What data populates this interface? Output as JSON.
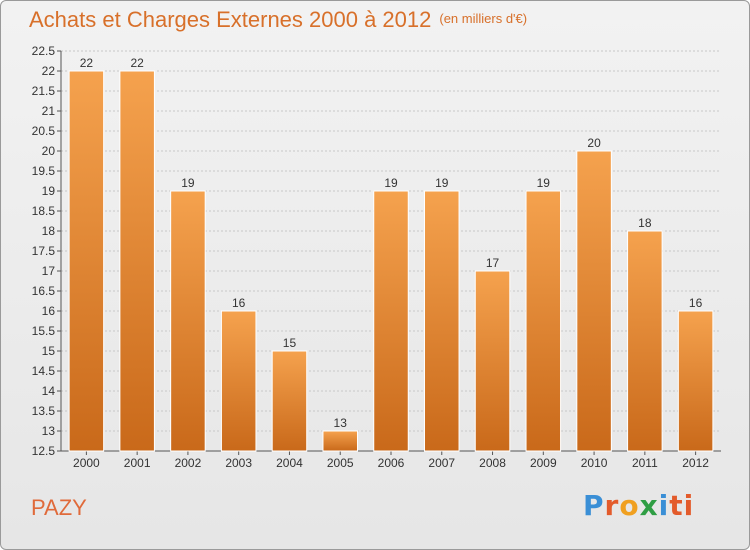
{
  "header": {
    "title": "Achats et Charges Externes 2000 à 2012",
    "subtitle": "(en milliers d'€)"
  },
  "commune": "PAZY",
  "logo": {
    "text": "Proxiti",
    "letters": [
      "P",
      "r",
      "o",
      "x",
      "i",
      "ti"
    ]
  },
  "colors": {
    "bar_top": "#f5a24e",
    "bar_bottom": "#c9691a",
    "title": "#d8702a",
    "grid": "#c8c8c8"
  },
  "chart_data": {
    "type": "bar",
    "title": "Achats et Charges Externes 2000 à 2012",
    "subtitle": "(en milliers d'€)",
    "xlabel": "",
    "ylabel": "",
    "categories": [
      "2000",
      "2001",
      "2002",
      "2003",
      "2004",
      "2005",
      "2006",
      "2007",
      "2008",
      "2009",
      "2010",
      "2011",
      "2012"
    ],
    "values": [
      22,
      22,
      19,
      16,
      15,
      13,
      19,
      19,
      17,
      19,
      20,
      18,
      16
    ],
    "ylim": [
      12.5,
      22.5
    ],
    "yticks": [
      "12.5",
      "13",
      "13.5",
      "14",
      "14.5",
      "15",
      "15.5",
      "16",
      "16.5",
      "17",
      "17.5",
      "18",
      "18.5",
      "19",
      "19.5",
      "20",
      "20.5",
      "21",
      "21.5",
      "22",
      "22.5"
    ],
    "grid": true,
    "legend": "none"
  }
}
